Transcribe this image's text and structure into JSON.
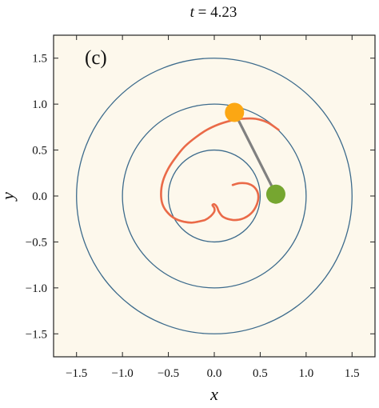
{
  "chart_data": {
    "type": "line",
    "title_prefix": "t",
    "title_eq": " = ",
    "title_value": "4.23",
    "panel_label": "(c)",
    "xlabel": "x",
    "ylabel": "y",
    "xlim": [
      -1.75,
      1.75
    ],
    "ylim": [
      -1.75,
      1.75
    ],
    "xticks": [
      -1.5,
      -1.0,
      -0.5,
      0.0,
      0.5,
      1.0,
      1.5
    ],
    "xtick_labels": [
      "−1.5",
      "−1.0",
      "−0.5",
      "0.0",
      "0.5",
      "1.0",
      "1.5"
    ],
    "yticks": [
      1.5,
      1.0,
      0.5,
      0.0,
      -0.5,
      -1.0,
      -1.5
    ],
    "ytick_labels": [
      "1.5",
      "1.0",
      "0.5",
      "0.0",
      "−0.5",
      "−1.0",
      "−1.5"
    ],
    "grid": false,
    "background_color": "#fdf8ec",
    "circles": {
      "center": [
        0,
        0
      ],
      "radii": [
        0.5,
        1.0,
        1.5
      ],
      "color": "#3d6b8c"
    },
    "trajectory": {
      "color": "#ea6a48",
      "x": [
        0.7,
        0.58,
        0.45,
        0.3,
        0.18,
        0.05,
        -0.08,
        -0.2,
        -0.32,
        -0.42,
        -0.5,
        -0.56,
        -0.58,
        -0.56,
        -0.5,
        -0.42,
        -0.33,
        -0.25,
        -0.18,
        -0.1,
        -0.04,
        0.0,
        0.0,
        -0.02,
        0.0,
        0.03,
        0.05,
        0.1,
        0.2,
        0.3,
        0.4,
        0.46,
        0.48,
        0.45,
        0.38,
        0.28,
        0.2
      ],
      "y": [
        0.72,
        0.8,
        0.84,
        0.84,
        0.82,
        0.78,
        0.72,
        0.64,
        0.54,
        0.42,
        0.3,
        0.16,
        0.02,
        -0.1,
        -0.19,
        -0.25,
        -0.28,
        -0.29,
        -0.28,
        -0.26,
        -0.22,
        -0.17,
        -0.13,
        -0.1,
        -0.09,
        -0.12,
        -0.17,
        -0.23,
        -0.26,
        -0.25,
        -0.19,
        -0.1,
        0.0,
        0.08,
        0.13,
        0.14,
        0.12
      ]
    },
    "rod": {
      "from": [
        0.22,
        0.91
      ],
      "to": [
        0.67,
        0.02
      ],
      "color": "#808080"
    },
    "masses": [
      {
        "name": "orange-mass",
        "x": 0.22,
        "y": 0.91,
        "color": "#fca713"
      },
      {
        "name": "green-mass",
        "x": 0.67,
        "y": 0.02,
        "color": "#76a630"
      }
    ]
  }
}
